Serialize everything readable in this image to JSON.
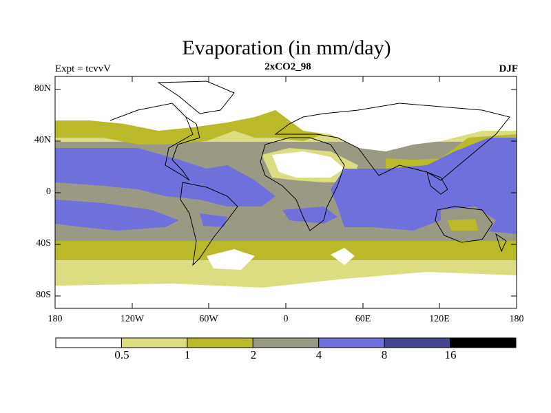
{
  "title": "Evaporation (in mm/day)",
  "subtitle_left": "Expt = tcvvV",
  "subtitle_center": "2xCO2_98",
  "subtitle_right": "DJF",
  "map_data": {
    "type": "filled-contour-map",
    "projection": "cylindrical-equidistant",
    "lon_range": [
      -180,
      180
    ],
    "lat_range": [
      -90,
      90
    ],
    "lat_ticks": [
      "80N",
      "40N",
      "0",
      "40S",
      "80S"
    ],
    "lon_ticks": [
      "180",
      "120W",
      "60W",
      "0",
      "60E",
      "120E",
      "180"
    ]
  },
  "colorbar": {
    "colors": [
      "#ffffff",
      "#dcdc80",
      "#b9b92a",
      "#9a9a84",
      "#7070dc",
      "#45458c",
      "#000000"
    ],
    "labels": [
      "0.5",
      "1",
      "2",
      "4",
      "8",
      "16"
    ]
  }
}
